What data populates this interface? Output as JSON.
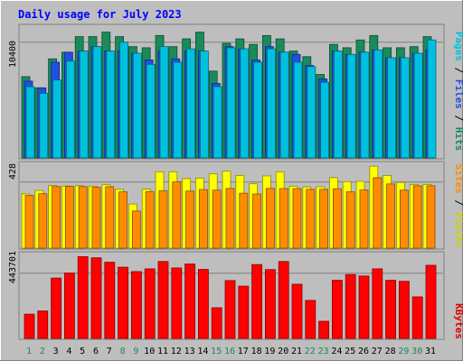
{
  "chart_data": {
    "type": "bar",
    "title": "Daily usage for July 2023",
    "x": [
      "1",
      "2",
      "3",
      "4",
      "5",
      "6",
      "7",
      "8",
      "9",
      "10",
      "11",
      "12",
      "13",
      "14",
      "15",
      "16",
      "17",
      "18",
      "19",
      "20",
      "21",
      "22",
      "23",
      "24",
      "25",
      "26",
      "27",
      "28",
      "29",
      "30",
      "31"
    ],
    "weekend_days": [
      "1",
      "2",
      "8",
      "9",
      "15",
      "16",
      "22",
      "23",
      "29",
      "30"
    ],
    "panels": [
      {
        "id": "hits",
        "axis_tick_label": "10400",
        "axis_tick_value": 10400,
        "ylim": [
          0,
          12000
        ],
        "side_label": {
          "parts": [
            "Pages",
            "Files",
            "Hits"
          ],
          "separator": " / ",
          "colors": [
            "#00c0e0",
            "#2050e0",
            "#1a8a5a"
          ]
        },
        "series": [
          {
            "name": "Hits",
            "color": "#1a8a5a",
            "values": [
              7300,
              6300,
              8900,
              9500,
              10900,
              10900,
              11300,
              10900,
              10000,
              9900,
              11000,
              10000,
              10700,
              11300,
              7800,
              10300,
              10700,
              10200,
              11000,
              10700,
              9600,
              9100,
              7500,
              10200,
              9900,
              10600,
              11000,
              9900,
              9900,
              10000,
              10900
            ]
          },
          {
            "name": "Files",
            "color": "#2050e0",
            "values": [
              6900,
              6300,
              8600,
              9500,
              9600,
              10000,
              9600,
              9600,
              9400,
              8800,
              9600,
              8900,
              9600,
              9600,
              6700,
              10000,
              9800,
              8800,
              10000,
              9500,
              9300,
              8300,
              7100,
              9600,
              9300,
              9500,
              9700,
              9000,
              9000,
              9400,
              9700
            ]
          },
          {
            "name": "Pages",
            "color": "#00c0e0",
            "values": [
              6400,
              5800,
              7000,
              8700,
              9600,
              10000,
              9600,
              10400,
              9400,
              8400,
              10000,
              8600,
              9800,
              9600,
              6400,
              9900,
              9800,
              8600,
              9800,
              9500,
              8600,
              8200,
              6800,
              9600,
              9300,
              9500,
              9700,
              9000,
              9000,
              9400,
              10600
            ]
          }
        ]
      },
      {
        "id": "visits",
        "axis_tick_label": "428",
        "axis_tick_value": 428,
        "ylim": [
          0,
          560
        ],
        "side_label": {
          "parts": [
            "Sites",
            "Visits"
          ],
          "separator": " / ",
          "colors": [
            "#ff8c00",
            "#d0d000"
          ]
        },
        "series": [
          {
            "name": "Visits",
            "color": "#ffff00",
            "values": [
              351,
              373,
              405,
              402,
              404,
              401,
              410,
              380,
              285,
              381,
              494,
              494,
              450,
              453,
              480,
              498,
              470,
              416,
              467,
              494,
              401,
              396,
              397,
              456,
              430,
              432,
              530,
              470,
              425,
              412,
              412
            ]
          },
          {
            "name": "Sites",
            "color": "#ff8c00",
            "values": [
              341,
              352,
              398,
              399,
              398,
              393,
              397,
              364,
              240,
              366,
              372,
              428,
              369,
              379,
              375,
              386,
              355,
              350,
              386,
              385,
              385,
              380,
              380,
              384,
              364,
              376,
              455,
              415,
              375,
              403,
              403
            ]
          }
        ]
      },
      {
        "id": "kbytes",
        "axis_tick_label": "443701",
        "axis_tick_value": 443701,
        "ylim": [
          0,
          590000
        ],
        "side_label": {
          "parts": [
            "KBytes"
          ],
          "separator": "",
          "colors": [
            "#e00000"
          ]
        },
        "series": [
          {
            "name": "KBytes",
            "color": "#ff0000",
            "values": [
              165000,
              187000,
              411000,
              445000,
              557000,
              549000,
              519000,
              485000,
              455000,
              474000,
              524000,
              480000,
              507000,
              470000,
              209000,
              394000,
              356000,
              503000,
              469000,
              524000,
              369000,
              259000,
              117000,
              396000,
              435000,
              425000,
              474000,
              396000,
              389000,
              283000,
              498000
            ]
          }
        ]
      }
    ]
  }
}
